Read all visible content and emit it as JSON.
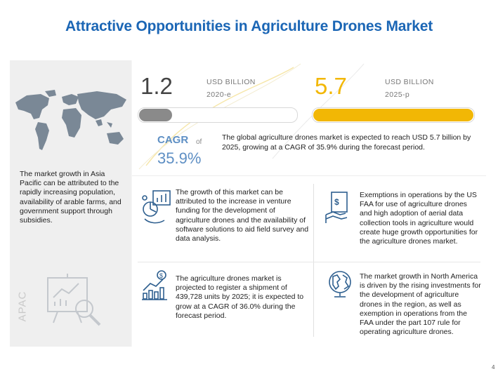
{
  "title": "Attractive Opportunities in Agriculture Drones Market",
  "market_2020": {
    "value": "1.2",
    "unit": "USD BILLION",
    "year": "2020-e",
    "bar_fill_fraction": 0.21
  },
  "market_2025": {
    "value": "5.7",
    "unit": "USD BILLION",
    "year": "2025-p",
    "bar_fill_fraction": 1.0
  },
  "cagr": {
    "label": "CAGR",
    "of": "of",
    "value": "35.9%"
  },
  "summary": "The global agriculture drones market is expected to reach USD 5.7 billion by 2025, growing at a CAGR of 35.9% during the forecast period.",
  "apac": {
    "text": "The market growth in Asia Pacific can be attributed to the rapidly increasing population, availability of arable farms, and government support through subsidies.",
    "label": "APAC"
  },
  "points": [
    {
      "icon": "analytics-icon",
      "text": "The growth of this market can be attributed to the increase in venture funding for the development of agriculture drones and the availability of software solutions to aid field survey and data analysis."
    },
    {
      "icon": "regulation-document-icon",
      "text": "Exemptions in operations by the US FAA for use of agriculture drones and high adoption of aerial data collection tools in agriculture would create huge growth opportunities for the agriculture drones market."
    },
    {
      "icon": "growth-chart-icon",
      "text": "The agriculture drones market is projected to register a shipment of 439,728 units by 2025; it is expected to grow at a CAGR of 36.0% during the forecast period."
    },
    {
      "icon": "globe-icon",
      "text": "The market growth in North America is driven by the rising investments for the development of agriculture drones in the region, as well as exemption in operations from the FAA under the part 107 rule for operating agriculture drones."
    }
  ],
  "colors": {
    "title": "#1b66b5",
    "gold": "#f2b705",
    "gray_bar": "#8a8a8a",
    "cagr": "#5e8fc4",
    "map": "#7a8896"
  },
  "corner_mark": "4"
}
